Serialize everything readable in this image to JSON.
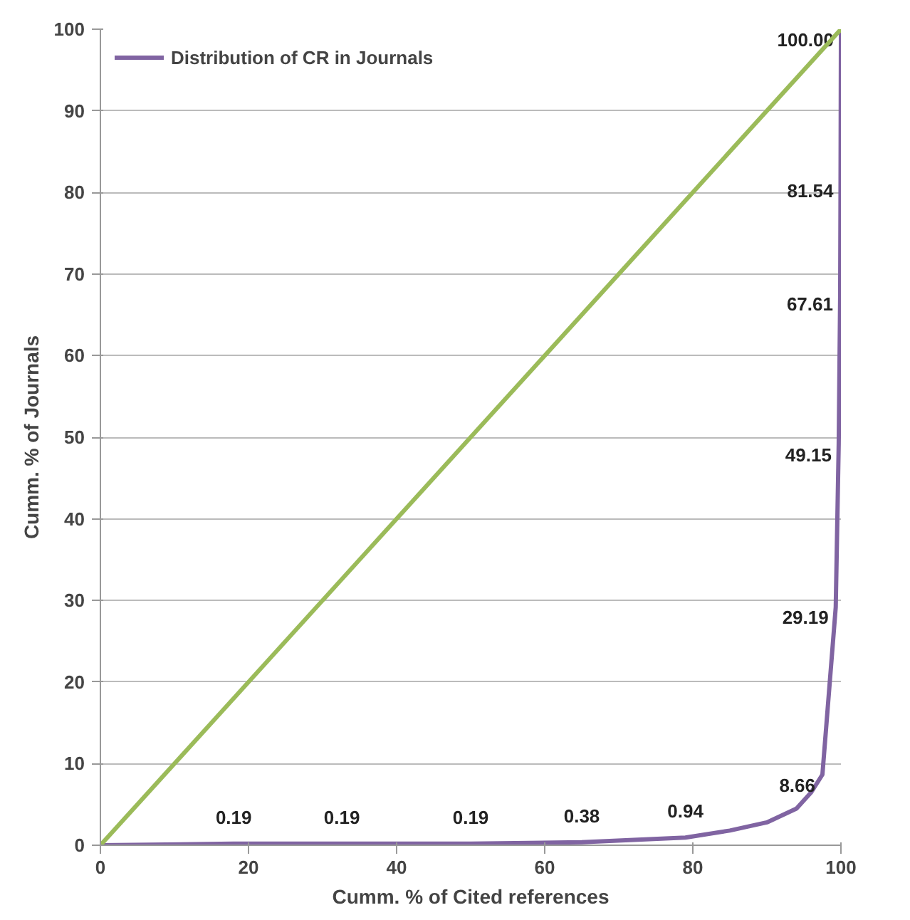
{
  "chart_data": {
    "type": "line",
    "xlabel": "Cumm. % of Cited references",
    "ylabel": "Cumm. % of Journals",
    "xlim": [
      0,
      100
    ],
    "ylim": [
      0,
      100
    ],
    "xticks": [
      0,
      20,
      40,
      60,
      80,
      100
    ],
    "yticks": [
      0,
      10,
      20,
      30,
      40,
      50,
      60,
      70,
      80,
      90,
      100
    ],
    "grid": "y",
    "legend": "top left",
    "marker": "none",
    "line_style": "solid",
    "series": [
      {
        "name": "Distribution of CR in Journals",
        "color": "#8064a2",
        "x": [
          0,
          18,
          32.6,
          50,
          65,
          79,
          85,
          90,
          94,
          96,
          97.5,
          99.3,
          99.7,
          99.9,
          99.95,
          100
        ],
        "values": [
          0,
          0.19,
          0.19,
          0.19,
          0.38,
          0.94,
          1.8,
          2.8,
          4.5,
          6.5,
          8.66,
          29.19,
          49.15,
          67.61,
          81.54,
          100
        ],
        "value_labels": [
          null,
          "0.19",
          "0.19",
          "0.19",
          "0.38",
          "0.94",
          null,
          null,
          null,
          null,
          "8.66",
          "29.19",
          "49.15",
          "67.61",
          "81.54",
          "100.00"
        ]
      },
      {
        "color": "#9bbb59",
        "x": [
          0,
          100
        ],
        "values": [
          0,
          100
        ]
      }
    ]
  }
}
